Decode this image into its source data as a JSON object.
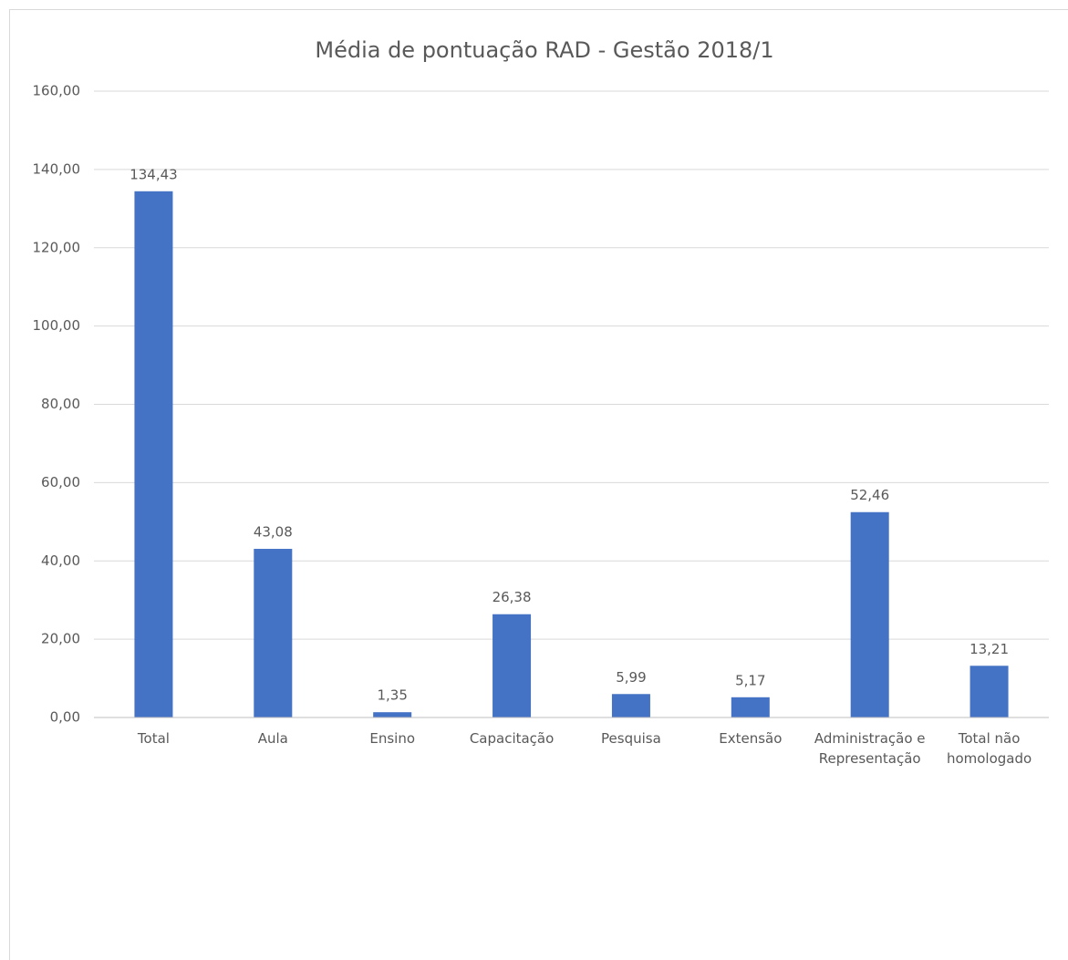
{
  "chart_data": {
    "type": "bar",
    "title": "Média de pontuação RAD - Gestão 2018/1",
    "categories": [
      "Total",
      "Aula",
      "Ensino",
      "Capacitação",
      "Pesquisa",
      "Extensão",
      "Administração e Representação",
      "Total não homologado"
    ],
    "values": [
      134.43,
      43.08,
      1.35,
      26.38,
      5.99,
      5.17,
      52.46,
      13.21
    ],
    "value_labels": [
      "134,43",
      "43,08",
      "1,35",
      "26,38",
      "5,99",
      "5,17",
      "52,46",
      "13,21"
    ],
    "color": "#4472c4",
    "ylim": [
      0,
      160
    ],
    "yticks": [
      {
        "value": 0,
        "label": "0,00"
      },
      {
        "value": 20,
        "label": "20,00"
      },
      {
        "value": 40,
        "label": "40,00"
      },
      {
        "value": 60,
        "label": "60,00"
      },
      {
        "value": 80,
        "label": "80,00"
      },
      {
        "value": 100,
        "label": "100,00"
      },
      {
        "value": 120,
        "label": "120,00"
      },
      {
        "value": 140,
        "label": "140,00"
      },
      {
        "value": 160,
        "label": "160,00"
      }
    ],
    "grid": true
  }
}
